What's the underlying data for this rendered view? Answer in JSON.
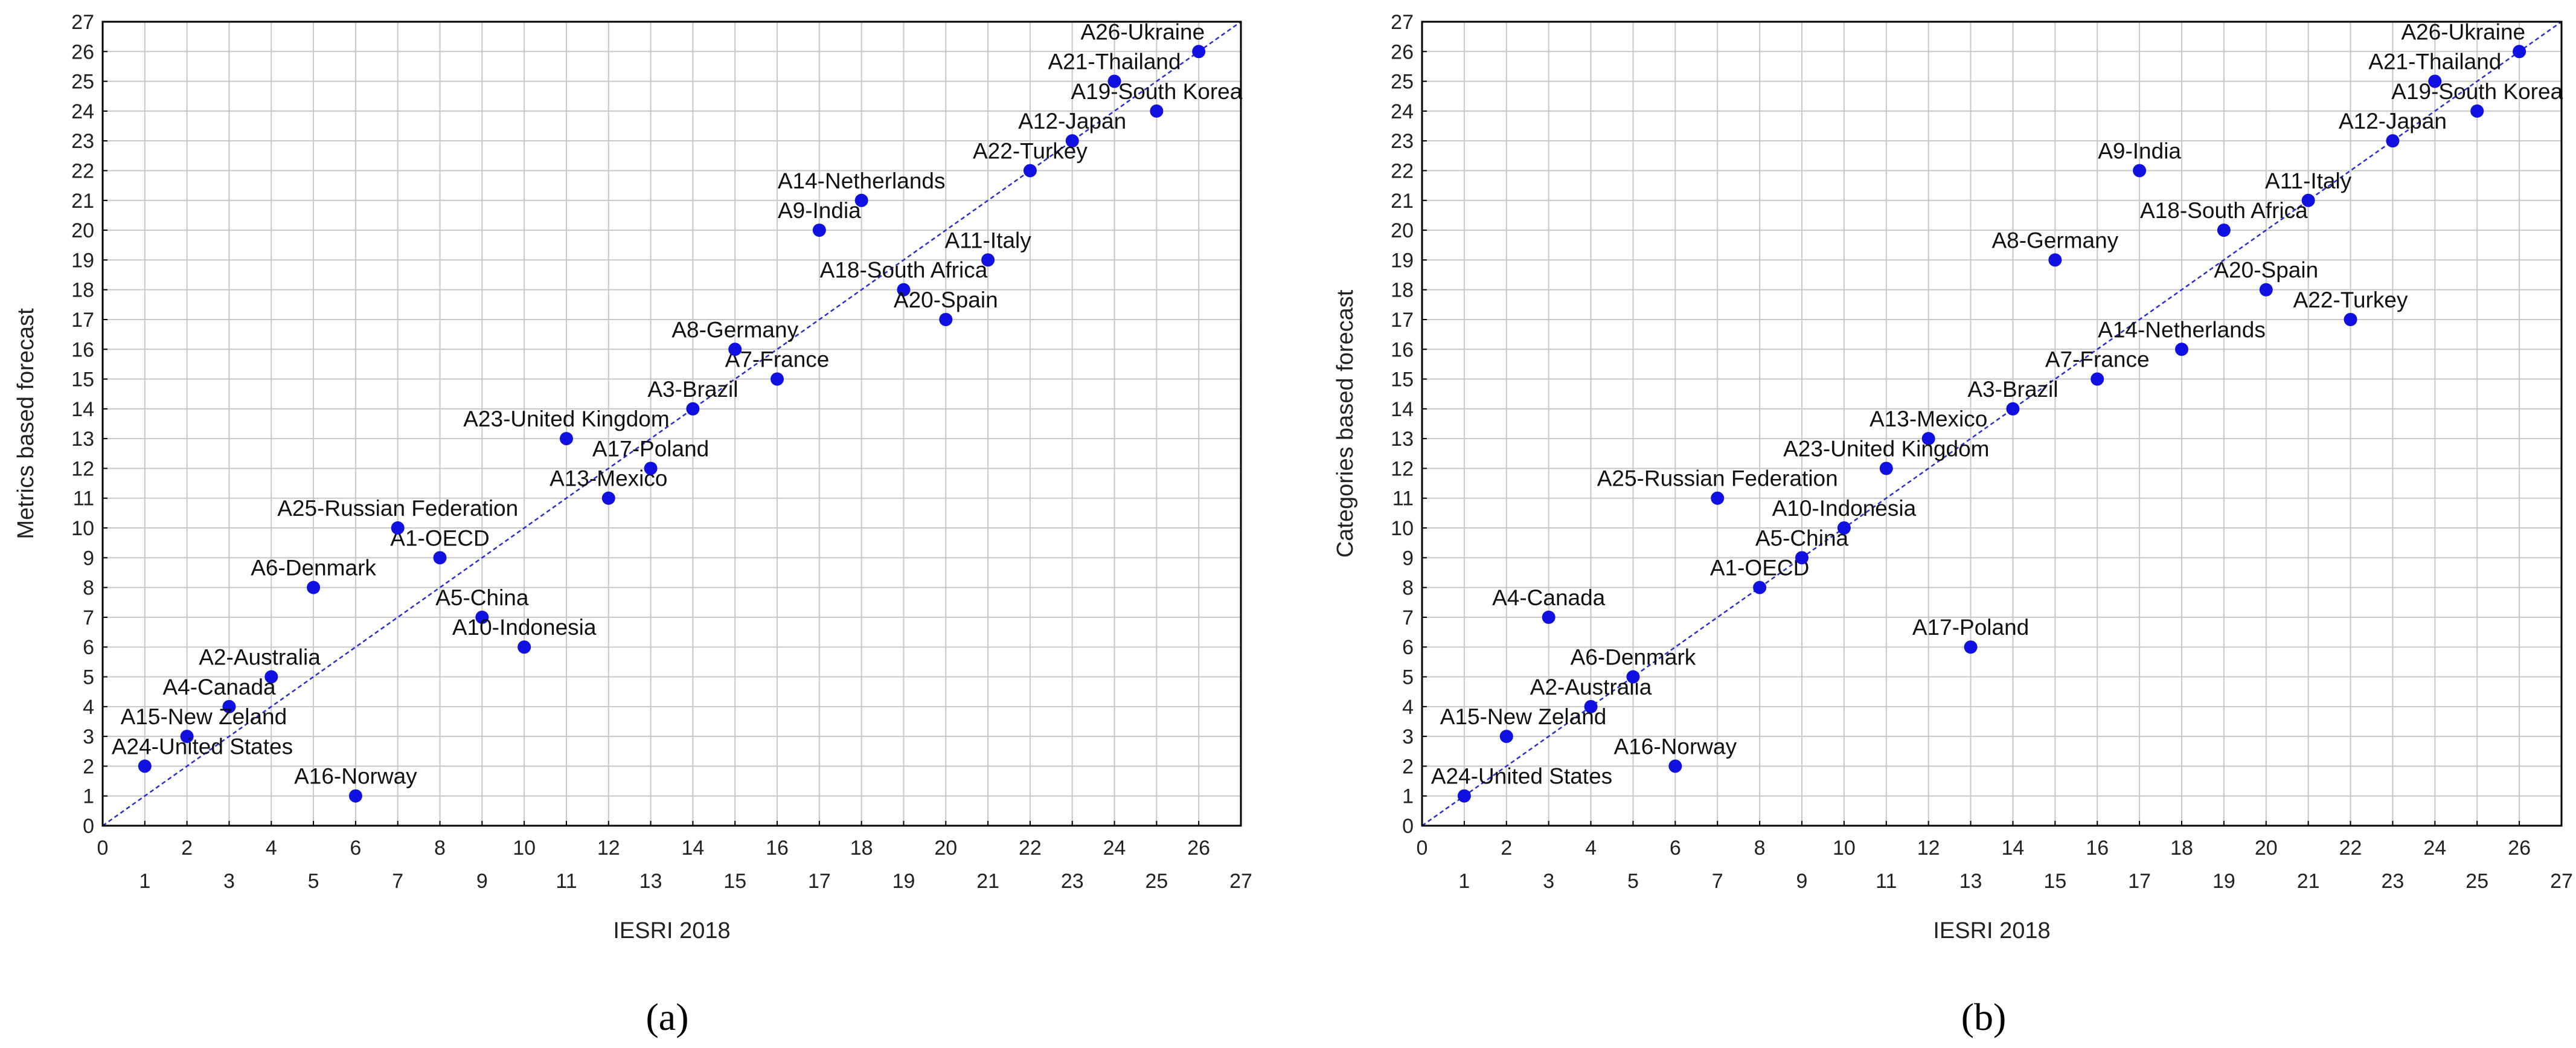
{
  "chart_data": [
    {
      "type": "scatter",
      "panel_label": "(a)",
      "xlabel": "IESRI 2018",
      "ylabel": "Metrics based forecast",
      "xlim": [
        0,
        27
      ],
      "ylim": [
        0,
        27
      ],
      "x_ticks_top_row": [
        0,
        2,
        4,
        6,
        8,
        10,
        12,
        14,
        16,
        18,
        20,
        22,
        24,
        26
      ],
      "x_ticks_bottom_row": [
        1,
        3,
        5,
        7,
        9,
        11,
        13,
        15,
        17,
        19,
        21,
        23,
        25,
        27
      ],
      "y_ticks": [
        0,
        1,
        2,
        3,
        4,
        5,
        6,
        7,
        8,
        9,
        10,
        11,
        12,
        13,
        14,
        15,
        16,
        17,
        18,
        19,
        20,
        21,
        22,
        23,
        24,
        25,
        26,
        27
      ],
      "grid": true,
      "reference_line": "y = x",
      "points": [
        {
          "label": "A1-OECD",
          "x": 8,
          "y": 9
        },
        {
          "label": "A2-Australia",
          "x": 4,
          "y": 5
        },
        {
          "label": "A3-Brazil",
          "x": 14,
          "y": 14
        },
        {
          "label": "A4-Canada",
          "x": 3,
          "y": 4
        },
        {
          "label": "A5-China",
          "x": 9,
          "y": 7
        },
        {
          "label": "A6-Denmark",
          "x": 5,
          "y": 8
        },
        {
          "label": "A7-France",
          "x": 16,
          "y": 15
        },
        {
          "label": "A8-Germany",
          "x": 15,
          "y": 16
        },
        {
          "label": "A9-India",
          "x": 17,
          "y": 20
        },
        {
          "label": "A10-Indonesia",
          "x": 10,
          "y": 6
        },
        {
          "label": "A11-Italy",
          "x": 21,
          "y": 19
        },
        {
          "label": "A12-Japan",
          "x": 23,
          "y": 23
        },
        {
          "label": "A13-Mexico",
          "x": 12,
          "y": 11
        },
        {
          "label": "A14-Netherlands",
          "x": 18,
          "y": 21
        },
        {
          "label": "A15-New Zeland",
          "x": 2,
          "y": 3
        },
        {
          "label": "A16-Norway",
          "x": 6,
          "y": 1
        },
        {
          "label": "A17-Poland",
          "x": 13,
          "y": 12
        },
        {
          "label": "A18-South Africa",
          "x": 19,
          "y": 18
        },
        {
          "label": "A19-South Korea",
          "x": 25,
          "y": 24
        },
        {
          "label": "A20-Spain",
          "x": 20,
          "y": 17
        },
        {
          "label": "A21-Thailand",
          "x": 24,
          "y": 25
        },
        {
          "label": "A22-Turkey",
          "x": 22,
          "y": 22
        },
        {
          "label": "A23-United Kingdom",
          "x": 11,
          "y": 13
        },
        {
          "label": "A24-United States",
          "x": 1,
          "y": 2
        },
        {
          "label": "A25-Russian Federation",
          "x": 7,
          "y": 10
        },
        {
          "label": "A26-Ukraine",
          "x": 26,
          "y": 26
        }
      ]
    },
    {
      "type": "scatter",
      "panel_label": "(b)",
      "xlabel": "IESRI 2018",
      "ylabel": "Categories based forecast",
      "xlim": [
        0,
        27
      ],
      "ylim": [
        0,
        27
      ],
      "x_ticks_top_row": [
        0,
        2,
        4,
        6,
        8,
        10,
        12,
        14,
        16,
        18,
        20,
        22,
        24,
        26
      ],
      "x_ticks_bottom_row": [
        1,
        3,
        5,
        7,
        9,
        11,
        13,
        15,
        17,
        19,
        21,
        23,
        25,
        27
      ],
      "y_ticks": [
        0,
        1,
        2,
        3,
        4,
        5,
        6,
        7,
        8,
        9,
        10,
        11,
        12,
        13,
        14,
        15,
        16,
        17,
        18,
        19,
        20,
        21,
        22,
        23,
        24,
        25,
        26,
        27
      ],
      "grid": true,
      "reference_line": "y = x",
      "points": [
        {
          "label": "A1-OECD",
          "x": 8,
          "y": 8
        },
        {
          "label": "A2-Australia",
          "x": 4,
          "y": 4
        },
        {
          "label": "A3-Brazil",
          "x": 14,
          "y": 14
        },
        {
          "label": "A4-Canada",
          "x": 3,
          "y": 7
        },
        {
          "label": "A5-China",
          "x": 9,
          "y": 9
        },
        {
          "label": "A6-Denmark",
          "x": 5,
          "y": 5
        },
        {
          "label": "A7-France",
          "x": 16,
          "y": 15
        },
        {
          "label": "A8-Germany",
          "x": 15,
          "y": 19
        },
        {
          "label": "A9-India",
          "x": 17,
          "y": 22
        },
        {
          "label": "A10-Indonesia",
          "x": 10,
          "y": 10
        },
        {
          "label": "A11-Italy",
          "x": 21,
          "y": 21
        },
        {
          "label": "A12-Japan",
          "x": 23,
          "y": 23
        },
        {
          "label": "A13-Mexico",
          "x": 12,
          "y": 13
        },
        {
          "label": "A14-Netherlands",
          "x": 18,
          "y": 16
        },
        {
          "label": "A15-New Zeland",
          "x": 2,
          "y": 3
        },
        {
          "label": "A16-Norway",
          "x": 6,
          "y": 2
        },
        {
          "label": "A17-Poland",
          "x": 13,
          "y": 6
        },
        {
          "label": "A18-South Africa",
          "x": 19,
          "y": 20
        },
        {
          "label": "A19-South Korea",
          "x": 25,
          "y": 24
        },
        {
          "label": "A20-Spain",
          "x": 20,
          "y": 18
        },
        {
          "label": "A21-Thailand",
          "x": 24,
          "y": 25
        },
        {
          "label": "A22-Turkey",
          "x": 22,
          "y": 17
        },
        {
          "label": "A23-United Kingdom",
          "x": 11,
          "y": 12
        },
        {
          "label": "A24-United States",
          "x": 1,
          "y": 1
        },
        {
          "label": "A25-Russian Federation",
          "x": 7,
          "y": 11
        },
        {
          "label": "A26-Ukraine",
          "x": 26,
          "y": 26
        }
      ]
    }
  ]
}
